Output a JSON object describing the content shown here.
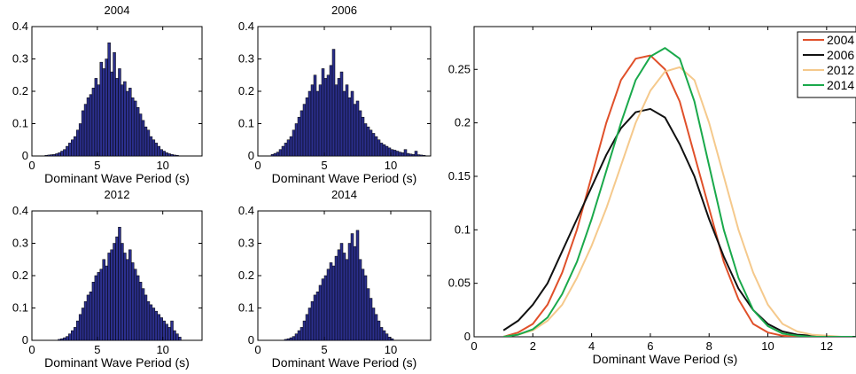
{
  "chart_data": [
    {
      "type": "bar",
      "title": "2004",
      "xlabel": "Dominant Wave Period (s)",
      "xlim": [
        0,
        13
      ],
      "ylim": [
        0,
        0.4
      ],
      "xticks": [
        0,
        5,
        10
      ],
      "yticks": [
        0,
        0.1,
        0.2,
        0.3,
        0.4
      ],
      "bar_color": "#2b2f8c",
      "bin_width": 0.2,
      "x": [
        1.1,
        1.3,
        1.5,
        1.7,
        1.9,
        2.1,
        2.3,
        2.5,
        2.7,
        2.9,
        3.1,
        3.3,
        3.5,
        3.7,
        3.9,
        4.1,
        4.3,
        4.5,
        4.7,
        4.9,
        5.1,
        5.3,
        5.5,
        5.7,
        5.9,
        6.1,
        6.3,
        6.5,
        6.7,
        6.9,
        7.1,
        7.3,
        7.5,
        7.7,
        7.9,
        8.1,
        8.3,
        8.5,
        8.7,
        8.9,
        9.1,
        9.3,
        9.5,
        9.7,
        9.9,
        10.1,
        10.3,
        10.5,
        10.7,
        10.9,
        11.1
      ],
      "values": [
        0.002,
        0.003,
        0.004,
        0.005,
        0.007,
        0.01,
        0.015,
        0.02,
        0.03,
        0.04,
        0.05,
        0.06,
        0.08,
        0.1,
        0.14,
        0.16,
        0.18,
        0.19,
        0.21,
        0.24,
        0.22,
        0.29,
        0.27,
        0.3,
        0.35,
        0.26,
        0.32,
        0.24,
        0.27,
        0.22,
        0.23,
        0.2,
        0.21,
        0.18,
        0.17,
        0.15,
        0.13,
        0.11,
        0.09,
        0.08,
        0.06,
        0.05,
        0.04,
        0.03,
        0.02,
        0.015,
        0.01,
        0.007,
        0.005,
        0.003,
        0.002
      ]
    },
    {
      "type": "bar",
      "title": "2006",
      "xlabel": "Dominant Wave Period (s)",
      "xlim": [
        0,
        13
      ],
      "ylim": [
        0,
        0.4
      ],
      "xticks": [
        0,
        5,
        10
      ],
      "yticks": [
        0,
        0.1,
        0.2,
        0.3,
        0.4
      ],
      "bar_color": "#2b2f8c",
      "bin_width": 0.2,
      "x": [
        1.1,
        1.3,
        1.5,
        1.7,
        1.9,
        2.1,
        2.3,
        2.5,
        2.7,
        2.9,
        3.1,
        3.3,
        3.5,
        3.7,
        3.9,
        4.1,
        4.3,
        4.5,
        4.7,
        4.9,
        5.1,
        5.3,
        5.5,
        5.7,
        5.9,
        6.1,
        6.3,
        6.5,
        6.7,
        6.9,
        7.1,
        7.3,
        7.5,
        7.7,
        7.9,
        8.1,
        8.3,
        8.5,
        8.7,
        8.9,
        9.1,
        9.3,
        9.5,
        9.7,
        9.9,
        10.1,
        10.3,
        10.5,
        10.7,
        10.9,
        11.1,
        11.3,
        11.5,
        11.7,
        11.9,
        12.1,
        12.3,
        12.5
      ],
      "values": [
        0.005,
        0.008,
        0.012,
        0.02,
        0.03,
        0.04,
        0.05,
        0.06,
        0.08,
        0.1,
        0.12,
        0.14,
        0.16,
        0.18,
        0.2,
        0.22,
        0.25,
        0.2,
        0.22,
        0.27,
        0.24,
        0.25,
        0.28,
        0.33,
        0.22,
        0.24,
        0.26,
        0.2,
        0.22,
        0.18,
        0.2,
        0.16,
        0.17,
        0.14,
        0.12,
        0.1,
        0.09,
        0.08,
        0.07,
        0.06,
        0.05,
        0.04,
        0.035,
        0.03,
        0.025,
        0.02,
        0.018,
        0.015,
        0.012,
        0.01,
        0.02,
        0.008,
        0.006,
        0.005,
        0.015,
        0.004,
        0.003,
        0.002
      ]
    },
    {
      "type": "bar",
      "title": "2012",
      "xlabel": "Dominant Wave Period (s)",
      "xlim": [
        0,
        13
      ],
      "ylim": [
        0,
        0.4
      ],
      "xticks": [
        0,
        5,
        10
      ],
      "yticks": [
        0,
        0.1,
        0.2,
        0.3,
        0.4
      ],
      "bar_color": "#2b2f8c",
      "bin_width": 0.2,
      "x": [
        2.1,
        2.3,
        2.5,
        2.7,
        2.9,
        3.1,
        3.3,
        3.5,
        3.7,
        3.9,
        4.1,
        4.3,
        4.5,
        4.7,
        4.9,
        5.1,
        5.3,
        5.5,
        5.7,
        5.9,
        6.1,
        6.3,
        6.5,
        6.7,
        6.9,
        7.1,
        7.3,
        7.5,
        7.7,
        7.9,
        8.1,
        8.3,
        8.5,
        8.7,
        8.9,
        9.1,
        9.3,
        9.5,
        9.7,
        9.9,
        10.1,
        10.3,
        10.5,
        10.7,
        10.9,
        11.1,
        11.3
      ],
      "values": [
        0.003,
        0.005,
        0.008,
        0.012,
        0.02,
        0.03,
        0.04,
        0.06,
        0.08,
        0.1,
        0.12,
        0.14,
        0.15,
        0.18,
        0.2,
        0.21,
        0.22,
        0.25,
        0.23,
        0.27,
        0.28,
        0.3,
        0.32,
        0.35,
        0.3,
        0.27,
        0.25,
        0.28,
        0.24,
        0.22,
        0.2,
        0.18,
        0.16,
        0.14,
        0.12,
        0.11,
        0.1,
        0.09,
        0.08,
        0.07,
        0.06,
        0.05,
        0.04,
        0.06,
        0.03,
        0.02,
        0.01
      ]
    },
    {
      "type": "bar",
      "title": "2014",
      "xlabel": "Dominant Wave Period (s)",
      "xlim": [
        0,
        13
      ],
      "ylim": [
        0,
        0.4
      ],
      "xticks": [
        0,
        5,
        10
      ],
      "yticks": [
        0,
        0.1,
        0.2,
        0.3,
        0.4
      ],
      "bar_color": "#2b2f8c",
      "bin_width": 0.2,
      "x": [
        2.1,
        2.3,
        2.5,
        2.7,
        2.9,
        3.1,
        3.3,
        3.5,
        3.7,
        3.9,
        4.1,
        4.3,
        4.5,
        4.7,
        4.9,
        5.1,
        5.3,
        5.5,
        5.7,
        5.9,
        6.1,
        6.3,
        6.5,
        6.7,
        6.9,
        7.1,
        7.3,
        7.5,
        7.7,
        7.9,
        8.1,
        8.3,
        8.5,
        8.7,
        8.9,
        9.1,
        9.3,
        9.5,
        9.7,
        9.9,
        10.1
      ],
      "values": [
        0.003,
        0.005,
        0.008,
        0.012,
        0.02,
        0.03,
        0.04,
        0.06,
        0.08,
        0.1,
        0.12,
        0.14,
        0.15,
        0.17,
        0.19,
        0.2,
        0.22,
        0.24,
        0.23,
        0.26,
        0.28,
        0.3,
        0.27,
        0.25,
        0.3,
        0.33,
        0.29,
        0.34,
        0.25,
        0.22,
        0.2,
        0.16,
        0.13,
        0.1,
        0.08,
        0.06,
        0.04,
        0.03,
        0.02,
        0.01,
        0.005
      ]
    },
    {
      "type": "line",
      "xlabel": "Dominant Wave Period (s)",
      "xlim": [
        0,
        13
      ],
      "ylim": [
        0,
        0.29
      ],
      "xticks": [
        0,
        2,
        4,
        6,
        8,
        10,
        12
      ],
      "yticks": [
        0,
        0.05,
        0.1,
        0.15,
        0.2,
        0.25
      ],
      "legend_position": "top-right",
      "x": [
        1,
        1.5,
        2,
        2.5,
        3,
        3.5,
        4,
        4.5,
        5,
        5.5,
        6,
        6.5,
        7,
        7.5,
        8,
        8.5,
        9,
        9.5,
        10,
        10.5,
        11,
        11.5,
        12,
        12.5,
        13
      ],
      "series": [
        {
          "name": "2004",
          "color": "#e0502a",
          "values": [
            0.0,
            0.004,
            0.012,
            0.03,
            0.06,
            0.1,
            0.15,
            0.2,
            0.24,
            0.26,
            0.263,
            0.25,
            0.22,
            0.17,
            0.12,
            0.07,
            0.035,
            0.012,
            0.004,
            0.001,
            0.0,
            0.0,
            0.0,
            0.0,
            0.0
          ]
        },
        {
          "name": "2006",
          "color": "#111111",
          "values": [
            0.006,
            0.015,
            0.03,
            0.05,
            0.08,
            0.11,
            0.14,
            0.17,
            0.195,
            0.21,
            0.213,
            0.205,
            0.18,
            0.15,
            0.11,
            0.075,
            0.045,
            0.025,
            0.012,
            0.005,
            0.002,
            0.001,
            0.0,
            0.0,
            0.0
          ]
        },
        {
          "name": "2012",
          "color": "#f5c98c",
          "values": [
            0.0,
            0.002,
            0.006,
            0.015,
            0.03,
            0.055,
            0.085,
            0.12,
            0.16,
            0.2,
            0.23,
            0.248,
            0.252,
            0.24,
            0.2,
            0.15,
            0.1,
            0.06,
            0.03,
            0.012,
            0.005,
            0.002,
            0.001,
            0.0,
            0.0
          ]
        },
        {
          "name": "2014",
          "color": "#1aa94b",
          "values": [
            0.0,
            0.002,
            0.007,
            0.018,
            0.04,
            0.07,
            0.11,
            0.155,
            0.2,
            0.24,
            0.262,
            0.27,
            0.26,
            0.22,
            0.16,
            0.1,
            0.055,
            0.025,
            0.01,
            0.003,
            0.001,
            0.0,
            0.0,
            0.0,
            0.0
          ]
        }
      ]
    }
  ]
}
